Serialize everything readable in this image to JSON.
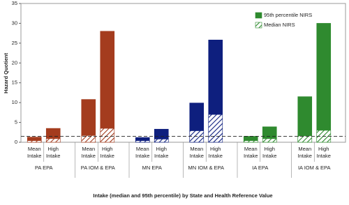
{
  "chart_data": {
    "type": "bar",
    "y_label": "Hazard Quotient",
    "x_label": "Intake (median and 95th percentile) by State and Health Reference Value",
    "categories": [
      "Mean Intake",
      "High Intake",
      "Mean Intake",
      "High Intake",
      "Mean Intake",
      "High Intake",
      "Mean Intake",
      "High Intake",
      "Mean Intake",
      "High Intake",
      "Mean Intake",
      "High Intake"
    ],
    "groups": [
      "PA EPA",
      "PA IOM & EPA",
      "MN EPA",
      "MN IOM & EPA",
      "IA EPA",
      "IA IOM & EPA"
    ],
    "group_colors": [
      "#a43c1e",
      "#a43c1e",
      "#0e1f7e",
      "#0e1f7e",
      "#2f8a2f",
      "#2f8a2f"
    ],
    "series": [
      {
        "name": "95th percentile NIRS",
        "color": "#2f8a2f",
        "pattern": "solid",
        "values": [
          1.3,
          3.5,
          10.8,
          28,
          1.2,
          3.3,
          9.9,
          25.8,
          1.5,
          3.9,
          11.5,
          30
        ]
      },
      {
        "name": "Median NIRS",
        "color": "#2f8a2f",
        "pattern": "hatch",
        "values": [
          0.4,
          0.9,
          1.7,
          3.5,
          0.4,
          0.8,
          2.9,
          7,
          0.4,
          0.9,
          1.6,
          3
        ]
      }
    ],
    "reference_line": 1.5,
    "ylim": [
      0,
      35
    ],
    "yticks": [
      0,
      5,
      10,
      15,
      20,
      25,
      30,
      35
    ],
    "grid": false,
    "legend": "top-right"
  }
}
